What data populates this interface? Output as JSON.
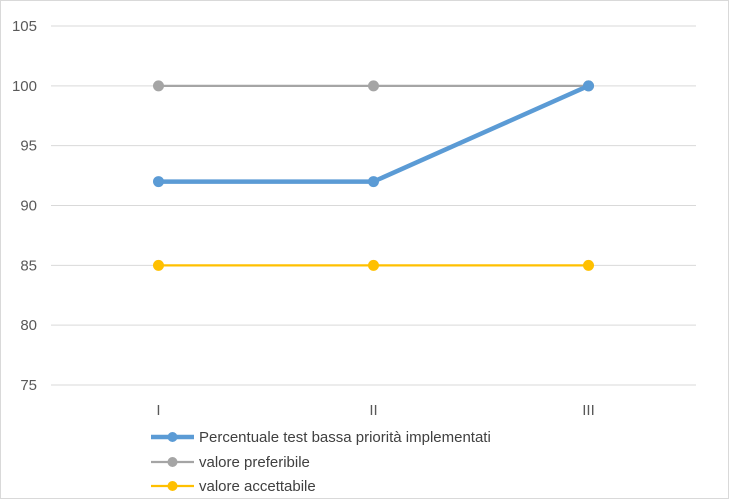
{
  "chart_data": {
    "type": "line",
    "categories": [
      "I",
      "II",
      "III"
    ],
    "series": [
      {
        "name": "Percentuale test bassa priorità implementati",
        "values": [
          92,
          92,
          100
        ],
        "color": "#5b9bd5"
      },
      {
        "name": "valore preferibile",
        "values": [
          100,
          100,
          100
        ],
        "color": "#a5a5a5"
      },
      {
        "name": "valore accettabile",
        "values": [
          85,
          85,
          85
        ],
        "color": "#ffc000"
      }
    ],
    "ylim": [
      75,
      105
    ],
    "yticks": [
      75,
      80,
      85,
      90,
      95,
      100,
      105
    ],
    "grid": true,
    "legend": "bottom",
    "title": "",
    "xlabel": "",
    "ylabel": ""
  }
}
